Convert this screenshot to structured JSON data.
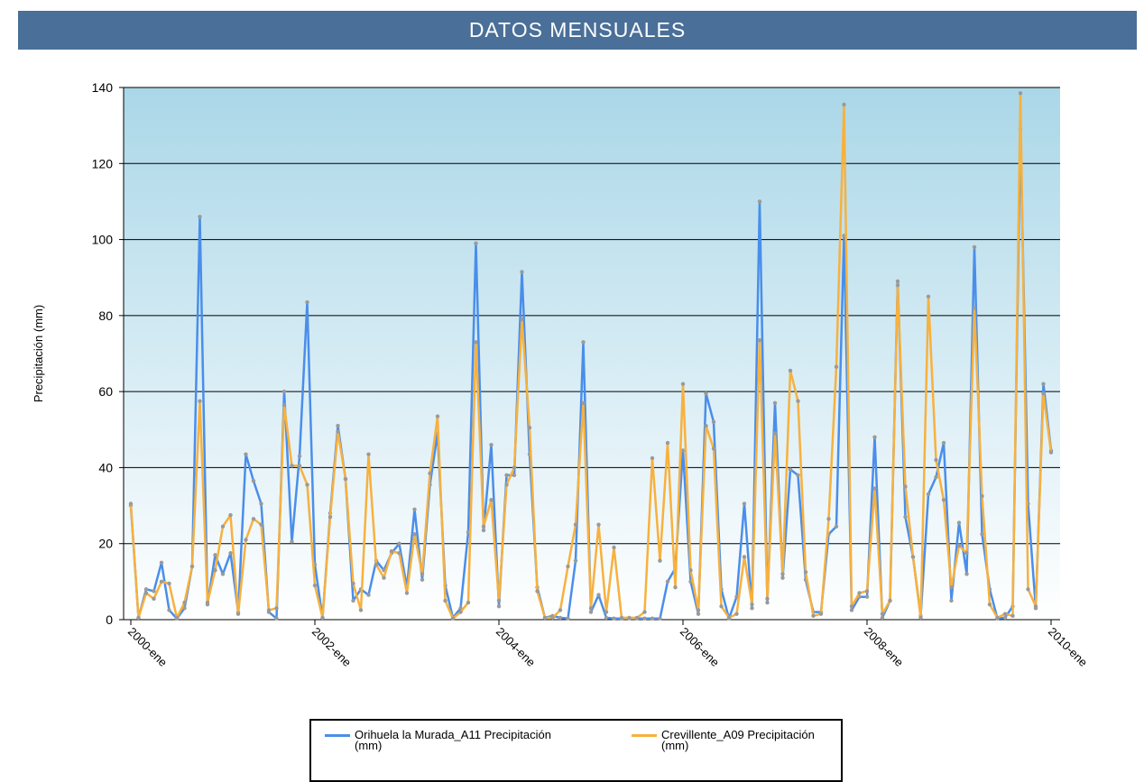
{
  "chart_data": {
    "type": "line",
    "title": "DATOS MENSUALES",
    "y_label": "Precipitación (mm)",
    "x": [
      "2000-ene",
      null,
      null,
      null,
      null,
      null,
      null,
      null,
      null,
      null,
      null,
      null,
      null,
      null,
      null,
      null,
      null,
      null,
      null,
      null,
      null,
      null,
      null,
      null,
      "2002-ene",
      null,
      null,
      null,
      null,
      null,
      null,
      null,
      null,
      null,
      null,
      null,
      null,
      null,
      null,
      null,
      null,
      null,
      null,
      null,
      null,
      null,
      null,
      null,
      "2004-ene",
      null,
      null,
      null,
      null,
      null,
      null,
      null,
      null,
      null,
      null,
      null,
      null,
      null,
      null,
      null,
      null,
      null,
      null,
      null,
      null,
      null,
      null,
      null,
      "2006-ene",
      null,
      null,
      null,
      null,
      null,
      null,
      null,
      null,
      null,
      null,
      null,
      null,
      null,
      null,
      null,
      null,
      null,
      null,
      null,
      null,
      null,
      null,
      null,
      "2008-ene",
      null,
      null,
      null,
      null,
      null,
      null,
      null,
      null,
      null,
      null,
      null,
      null,
      null,
      null,
      null,
      null,
      null,
      null,
      null,
      null,
      null,
      null,
      null,
      "2010-ene"
    ],
    "series": [
      {
        "name": "Orihuela la Murada_A11 Precipitación (mm)",
        "color": "#4a8eea",
        "values": [
          30,
          0.5,
          8,
          7.5,
          15,
          2.5,
          0.3,
          3,
          14,
          106,
          4,
          17,
          12,
          17.5,
          2,
          43.5,
          36.5,
          30.5,
          2,
          0.3,
          60,
          20.5,
          43,
          83.5,
          14.5,
          0.5,
          28,
          51,
          37,
          5,
          8,
          6.5,
          15.5,
          13,
          17.5,
          20,
          8.5,
          29,
          10.5,
          35.5,
          49,
          9,
          0.5,
          3,
          23,
          99,
          23.5,
          46,
          3.5,
          38,
          38,
          91.5,
          43.5,
          8.5,
          0.5,
          1,
          0.5,
          0.3,
          15.5,
          73,
          2,
          6.5,
          0.5,
          0.3,
          0.3,
          0.3,
          0.3,
          0.3,
          0.3,
          0.3,
          10,
          13.5,
          44.5,
          10,
          1.5,
          59.5,
          52,
          8,
          0.3,
          6,
          30.5,
          3,
          110,
          4.5,
          57,
          11,
          39.5,
          38,
          10.5,
          2,
          2,
          22.5,
          24.5,
          101,
          2.5,
          6,
          6,
          48,
          0.5,
          5,
          89,
          27,
          16.5,
          1,
          33,
          37.5,
          46.5,
          5,
          25.5,
          12,
          98,
          22.5,
          8,
          0.3,
          0.5,
          3.5,
          129,
          30.5,
          3,
          62,
          44.5
        ]
      },
      {
        "name": "Crevillente_A09 Precipitación (mm)",
        "color": "#f7b13e",
        "values": [
          30.5,
          0.5,
          7,
          5.5,
          10,
          9.5,
          0.5,
          4.5,
          14,
          57.5,
          4.5,
          13,
          24.5,
          27.5,
          1.5,
          21,
          26.5,
          25,
          2.5,
          3,
          56.5,
          40.5,
          40.5,
          35.5,
          9,
          0.5,
          27,
          49.5,
          37,
          9.5,
          2.5,
          43.5,
          14.5,
          11,
          18,
          17.5,
          7,
          22.5,
          12,
          38.5,
          53.5,
          5,
          0.3,
          2,
          4.5,
          73,
          24.5,
          31.5,
          5,
          35.5,
          40,
          79,
          50.5,
          7.5,
          0.5,
          0.5,
          2.5,
          14,
          25,
          57,
          3,
          25,
          2,
          19,
          0.5,
          0.5,
          0.5,
          2,
          42.5,
          15.5,
          46.5,
          8.5,
          62,
          13,
          2.5,
          51,
          45,
          3.5,
          0.5,
          1.5,
          16.5,
          4,
          73.5,
          5.5,
          49,
          12,
          65.5,
          57.5,
          12.5,
          1,
          1.5,
          26.5,
          66.5,
          135.5,
          3.5,
          7,
          7.5,
          34.5,
          1.5,
          5,
          88,
          35,
          16.5,
          0.5,
          85,
          42,
          31.5,
          8.5,
          19.5,
          17.5,
          82,
          32.5,
          4,
          0.5,
          1.5,
          1,
          138.5,
          8,
          3.5,
          59.5,
          44
        ]
      }
    ],
    "marker_color": "#9a9a9a",
    "ylim": [
      0,
      140
    ],
    "yticks": [
      0,
      20,
      40,
      60,
      80,
      100,
      120,
      140
    ],
    "grid": true,
    "legend": "bottom"
  }
}
